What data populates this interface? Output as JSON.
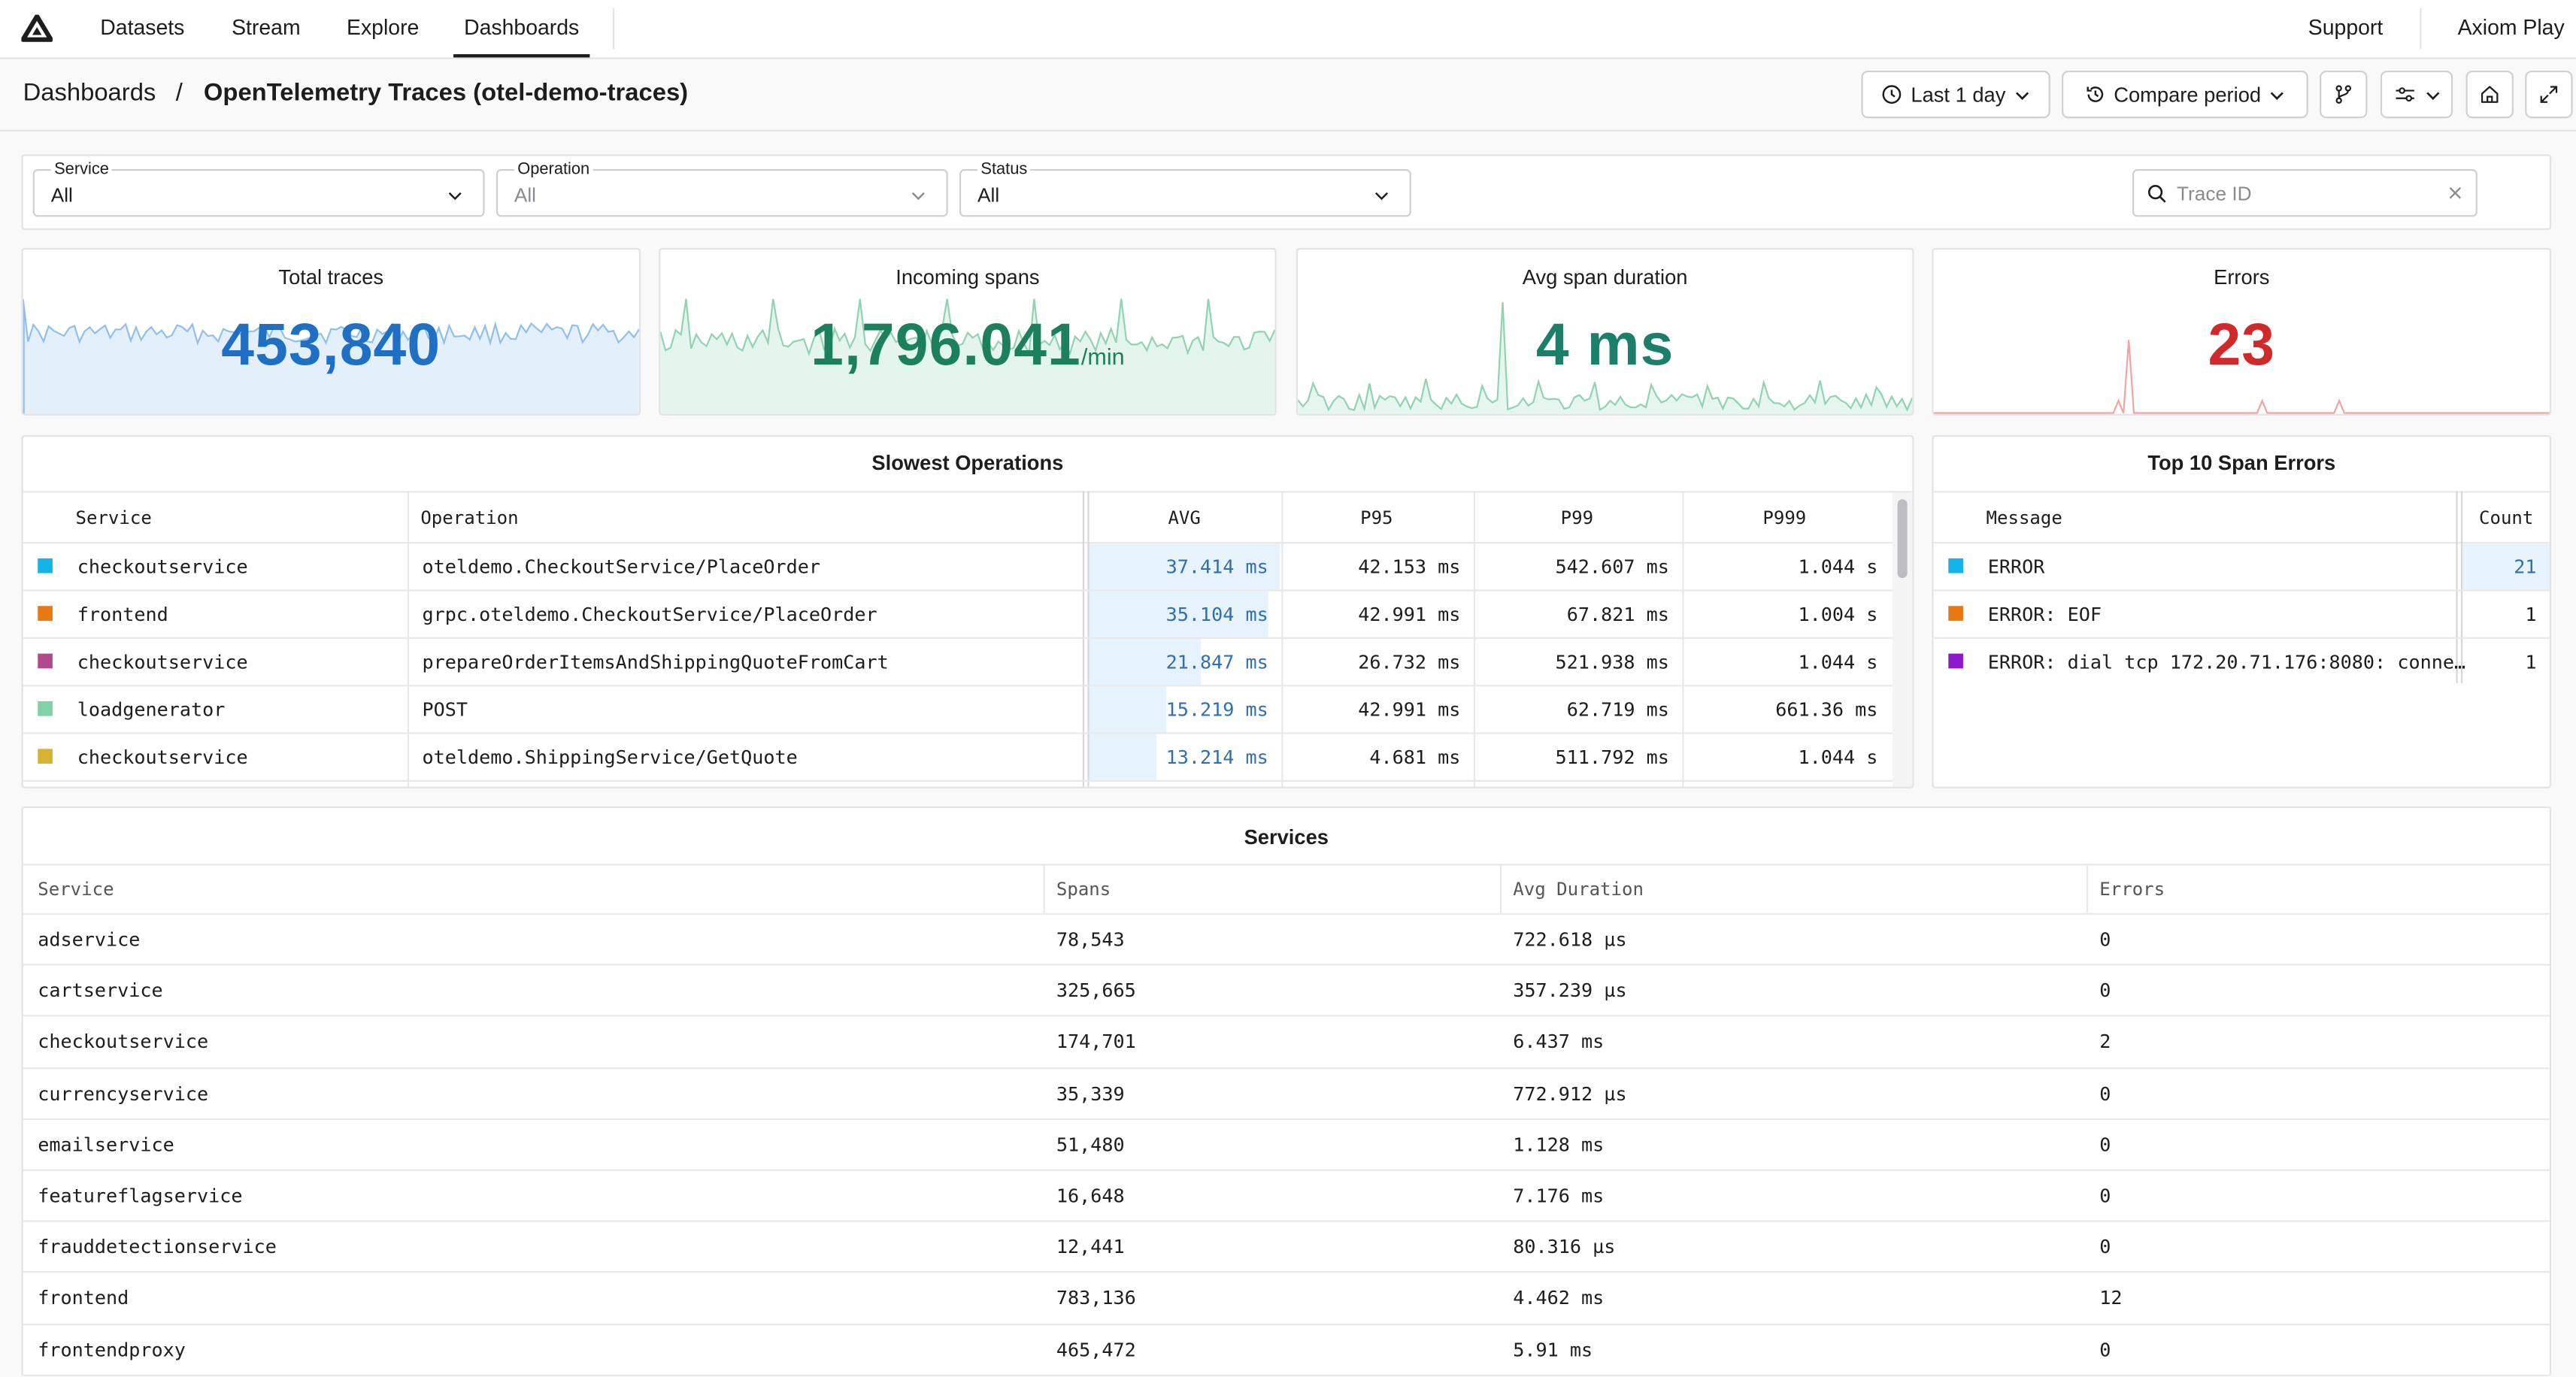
{
  "nav": {
    "tabs": [
      "Datasets",
      "Stream",
      "Explore",
      "Dashboards"
    ],
    "active": "Dashboards",
    "support": "Support",
    "org": "Axiom Play"
  },
  "breadcrumb": {
    "root": "Dashboards",
    "separator": "/",
    "title": "OpenTelemetry Traces (otel-demo-traces)"
  },
  "toolbar": {
    "time_range": "Last 1 day",
    "compare": "Compare period"
  },
  "filters": {
    "service": {
      "label": "Service",
      "value": "All"
    },
    "operation": {
      "label": "Operation",
      "value": "All"
    },
    "status": {
      "label": "Status",
      "value": "All"
    },
    "trace_id_placeholder": "Trace ID"
  },
  "stats": [
    {
      "title": "Total traces",
      "value": "453,840",
      "unit": "",
      "color": "#1f6fc5",
      "fill": "#e3f0fc",
      "stroke": "#8fbfec"
    },
    {
      "title": "Incoming spans",
      "value": "1,796.041",
      "unit": "/min",
      "color": "#1c7f5e",
      "fill": "#e3f5ec",
      "stroke": "#8fd3b1"
    },
    {
      "title": "Avg span duration",
      "value": "4 ms",
      "unit": "",
      "color": "#1c7f6a",
      "fill": "#e6f6ef",
      "stroke": "#8fd3b1"
    },
    {
      "title": "Errors",
      "value": "23",
      "unit": "",
      "color": "#d02929",
      "fill": "#ffffff",
      "stroke": "#f0a3a3"
    }
  ],
  "slowest": {
    "title": "Slowest Operations",
    "columns": [
      "Service",
      "Operation",
      "AVG",
      "P95",
      "P99",
      "P999"
    ],
    "rows": [
      {
        "color": "#11b3e8",
        "service": "checkoutservice",
        "operation": "oteldemo.CheckoutService/PlaceOrder",
        "avg": "37.414 ms",
        "avg_num": 37.414,
        "p95": "42.153 ms",
        "p99": "542.607 ms",
        "p999": "1.044 s"
      },
      {
        "color": "#e87811",
        "service": "frontend",
        "operation": "grpc.oteldemo.CheckoutService/PlaceOrder",
        "avg": "35.104 ms",
        "avg_num": 35.104,
        "p95": "42.991 ms",
        "p99": "67.821 ms",
        "p999": "1.004 s"
      },
      {
        "color": "#b04a8c",
        "service": "checkoutservice",
        "operation": "prepareOrderItemsAndShippingQuoteFromCart",
        "avg": "21.847 ms",
        "avg_num": 21.847,
        "p95": "26.732 ms",
        "p99": "521.938 ms",
        "p999": "1.044 s"
      },
      {
        "color": "#7fd1a8",
        "service": "loadgenerator",
        "operation": "POST",
        "avg": "15.219 ms",
        "avg_num": 15.219,
        "p95": "42.991 ms",
        "p99": "62.719 ms",
        "p999": "661.36 ms"
      },
      {
        "color": "#d8b331",
        "service": "checkoutservice",
        "operation": "oteldemo.ShippingService/GetQuote",
        "avg": "13.214 ms",
        "avg_num": 13.214,
        "p95": "4.681 ms",
        "p99": "511.792 ms",
        "p999": "1.044 s"
      }
    ]
  },
  "errors_top": {
    "title": "Top 10 Span Errors",
    "columns": [
      "Message",
      "Count"
    ],
    "rows": [
      {
        "color": "#11b3e8",
        "message": "ERROR",
        "count": "21"
      },
      {
        "color": "#e87811",
        "message": "ERROR: EOF",
        "count": "1"
      },
      {
        "color": "#8e19c9",
        "message": "ERROR: dial tcp 172.20.71.176:8080: conne…",
        "count": "1"
      }
    ]
  },
  "services": {
    "title": "Services",
    "columns": [
      "Service",
      "Spans",
      "Avg Duration",
      "Errors"
    ],
    "rows": [
      {
        "service": "adservice",
        "spans": "78,543",
        "avg": "722.618 µs",
        "errors": "0"
      },
      {
        "service": "cartservice",
        "spans": "325,665",
        "avg": "357.239 µs",
        "errors": "0"
      },
      {
        "service": "checkoutservice",
        "spans": "174,701",
        "avg": "6.437 ms",
        "errors": "2"
      },
      {
        "service": "currencyservice",
        "spans": "35,339",
        "avg": "772.912 µs",
        "errors": "0"
      },
      {
        "service": "emailservice",
        "spans": "51,480",
        "avg": "1.128 ms",
        "errors": "0"
      },
      {
        "service": "featureflagservice",
        "spans": "16,648",
        "avg": "7.176 ms",
        "errors": "0"
      },
      {
        "service": "frauddetectionservice",
        "spans": "12,441",
        "avg": "80.316 µs",
        "errors": "0"
      },
      {
        "service": "frontend",
        "spans": "783,136",
        "avg": "4.462 ms",
        "errors": "12"
      },
      {
        "service": "frontendproxy",
        "spans": "465,472",
        "avg": "5.91 ms",
        "errors": "0"
      }
    ]
  }
}
